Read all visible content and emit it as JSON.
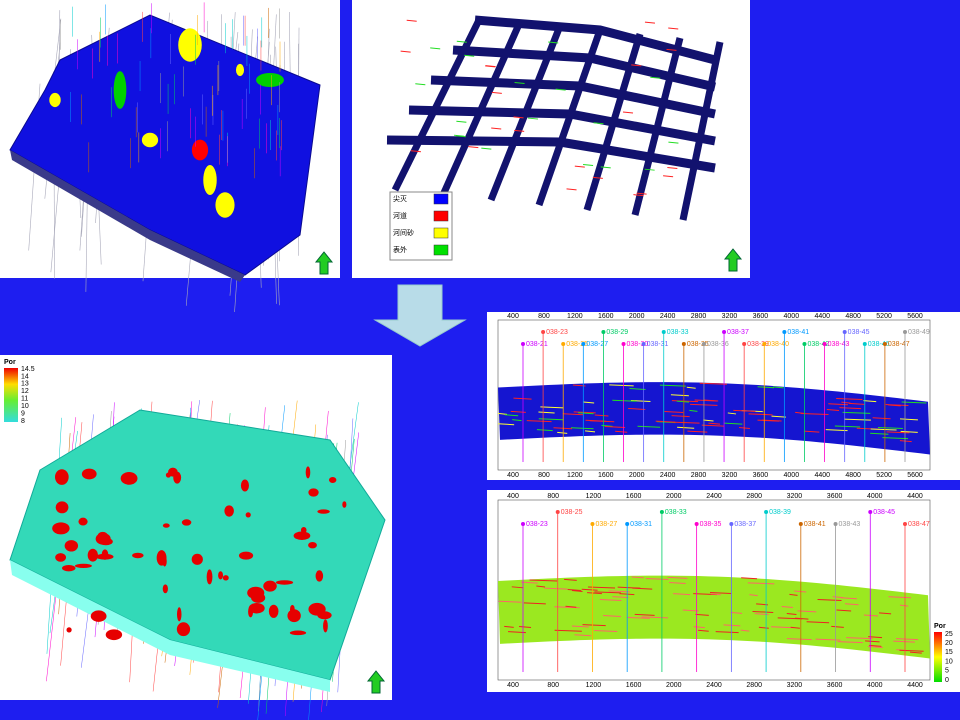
{
  "facies_legend": {
    "items": [
      {
        "label": "尖灭",
        "color": "#0000ff"
      },
      {
        "label": "河道",
        "color": "#ff0000"
      },
      {
        "label": "河间砂",
        "color": "#ffff00"
      },
      {
        "label": "表外",
        "color": "#00e000"
      }
    ]
  },
  "por_legend_3d": {
    "title": "Por",
    "labels": [
      "14.5",
      "14",
      "13",
      "12",
      "11",
      "10",
      "9",
      "8"
    ]
  },
  "section_top": {
    "x_ticks": [
      "400",
      "800",
      "1200",
      "1600",
      "2000",
      "2400",
      "2800",
      "3200",
      "3600",
      "4000",
      "4400",
      "4800",
      "5200",
      "5600"
    ],
    "wells": [
      "038-21",
      "038-23",
      "038-25",
      "038-27",
      "038-29",
      "038-30",
      "038-31",
      "038-33",
      "038-35",
      "038-36",
      "038-37",
      "038-39",
      "038-40",
      "038-41",
      "038-42",
      "038-43",
      "038-45",
      "038-46",
      "038-47",
      "038-49"
    ]
  },
  "section_bottom": {
    "x_ticks": [
      "400",
      "800",
      "1200",
      "1600",
      "2000",
      "2400",
      "2800",
      "3200",
      "3600",
      "4000",
      "4400"
    ],
    "wells": [
      "038-23",
      "038-25",
      "038-27",
      "038-31",
      "038-33",
      "038-35",
      "038-37",
      "038-39",
      "038-41",
      "038-43",
      "038-45",
      "038-47"
    ],
    "por_legend": {
      "title": "Por",
      "labels": [
        "25",
        "20",
        "15",
        "10",
        "5",
        "0"
      ]
    }
  }
}
